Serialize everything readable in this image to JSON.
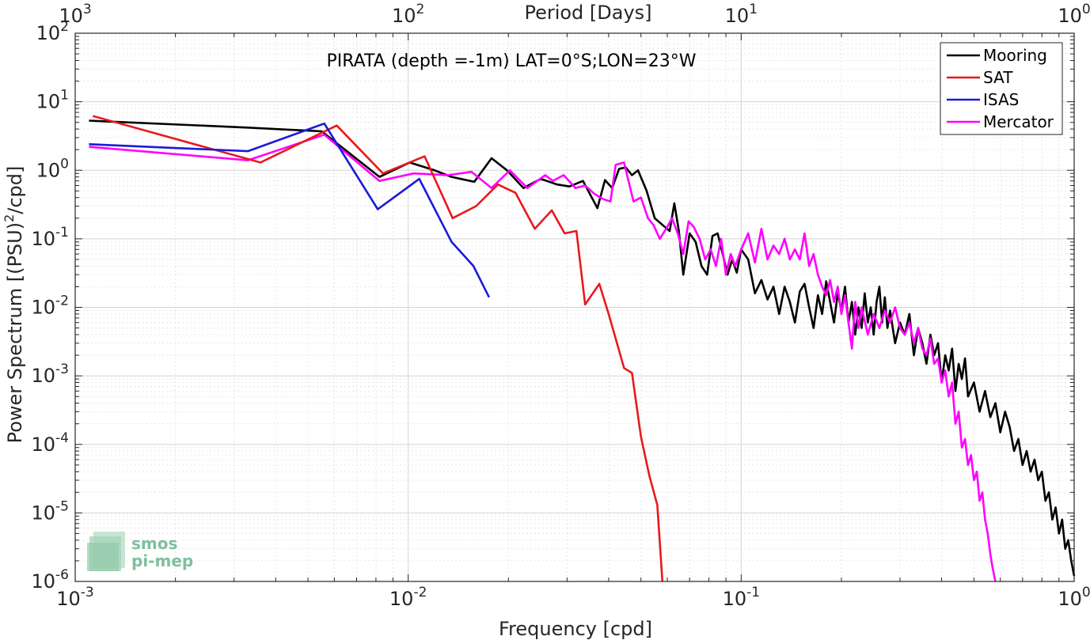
{
  "chart_data": {
    "type": "line",
    "title": "PIRATA (depth =-1m) LAT=0°S;LON=23°W",
    "xlabel": "Frequency [cpd]",
    "ylabel": "Power Spectrum [(PSU)",
    "ylabel_sup": "2",
    "ylabel_tail": "/cpd]",
    "top_xlabel": "Period [Days]",
    "xscale": "log",
    "yscale": "log",
    "xlim": [
      0.001,
      1
    ],
    "ylim": [
      1e-06,
      100
    ],
    "grid": true,
    "legend_position": "top-right",
    "x_ticks": [
      {
        "value": 0.001,
        "base": "10",
        "exp": "-3"
      },
      {
        "value": 0.01,
        "base": "10",
        "exp": "-2"
      },
      {
        "value": 0.1,
        "base": "10",
        "exp": "-1"
      },
      {
        "value": 1,
        "base": "10",
        "exp": "0"
      }
    ],
    "top_ticks": [
      {
        "value": 0.001,
        "base": "10",
        "exp": "3"
      },
      {
        "value": 0.01,
        "base": "10",
        "exp": "2"
      },
      {
        "value": 0.1,
        "base": "10",
        "exp": "1"
      },
      {
        "value": 1,
        "base": "10",
        "exp": "0"
      }
    ],
    "y_ticks": [
      {
        "value": 100,
        "base": "10",
        "exp": "2"
      },
      {
        "value": 10,
        "base": "10",
        "exp": "1"
      },
      {
        "value": 1,
        "base": "10",
        "exp": "0"
      },
      {
        "value": 0.1,
        "base": "10",
        "exp": "-1"
      },
      {
        "value": 0.01,
        "base": "10",
        "exp": "-2"
      },
      {
        "value": 0.001,
        "base": "10",
        "exp": "-3"
      },
      {
        "value": 0.0001,
        "base": "10",
        "exp": "-4"
      },
      {
        "value": 1e-05,
        "base": "10",
        "exp": "-5"
      },
      {
        "value": 1e-06,
        "base": "10",
        "exp": "-6"
      }
    ],
    "series": [
      {
        "name": "Mooring",
        "color": "#000000",
        "points": [
          [
            0.0011,
            5.3
          ],
          [
            0.0033,
            4.2
          ],
          [
            0.0055,
            3.7
          ],
          [
            0.0082,
            0.8
          ],
          [
            0.0101,
            1.3
          ],
          [
            0.012,
            1.0
          ],
          [
            0.0135,
            0.8
          ],
          [
            0.0158,
            0.68
          ],
          [
            0.0178,
            1.5
          ],
          [
            0.0198,
            1.0
          ],
          [
            0.0222,
            0.55
          ],
          [
            0.025,
            0.75
          ],
          [
            0.028,
            0.62
          ],
          [
            0.0305,
            0.58
          ],
          [
            0.0335,
            0.7
          ],
          [
            0.037,
            0.28
          ],
          [
            0.039,
            0.72
          ],
          [
            0.041,
            0.55
          ],
          [
            0.043,
            1.05
          ],
          [
            0.045,
            1.1
          ],
          [
            0.047,
            0.85
          ],
          [
            0.049,
            1.0
          ],
          [
            0.052,
            0.5
          ],
          [
            0.055,
            0.2
          ],
          [
            0.058,
            0.16
          ],
          [
            0.061,
            0.13
          ],
          [
            0.063,
            0.33
          ],
          [
            0.065,
            0.13
          ],
          [
            0.067,
            0.03
          ],
          [
            0.07,
            0.12
          ],
          [
            0.073,
            0.09
          ],
          [
            0.076,
            0.04
          ],
          [
            0.079,
            0.03
          ],
          [
            0.082,
            0.11
          ],
          [
            0.085,
            0.12
          ],
          [
            0.088,
            0.06
          ],
          [
            0.091,
            0.03
          ],
          [
            0.094,
            0.05
          ],
          [
            0.097,
            0.032
          ],
          [
            0.1,
            0.07
          ],
          [
            0.105,
            0.05
          ],
          [
            0.11,
            0.016
          ],
          [
            0.115,
            0.025
          ],
          [
            0.12,
            0.013
          ],
          [
            0.125,
            0.02
          ],
          [
            0.13,
            0.008
          ],
          [
            0.135,
            0.02
          ],
          [
            0.14,
            0.012
          ],
          [
            0.145,
            0.006
          ],
          [
            0.15,
            0.017
          ],
          [
            0.155,
            0.022
          ],
          [
            0.16,
            0.01
          ],
          [
            0.165,
            0.005
          ],
          [
            0.17,
            0.015
          ],
          [
            0.175,
            0.008
          ],
          [
            0.18,
            0.024
          ],
          [
            0.185,
            0.012
          ],
          [
            0.19,
            0.006
          ],
          [
            0.195,
            0.016
          ],
          [
            0.2,
            0.009
          ],
          [
            0.205,
            0.02
          ],
          [
            0.21,
            0.006
          ],
          [
            0.215,
            0.012
          ],
          [
            0.22,
            0.004
          ],
          [
            0.225,
            0.01
          ],
          [
            0.23,
            0.005
          ],
          [
            0.235,
            0.016
          ],
          [
            0.24,
            0.006
          ],
          [
            0.245,
            0.01
          ],
          [
            0.25,
            0.004
          ],
          [
            0.255,
            0.012
          ],
          [
            0.26,
            0.02
          ],
          [
            0.265,
            0.006
          ],
          [
            0.27,
            0.014
          ],
          [
            0.275,
            0.005
          ],
          [
            0.28,
            0.009
          ],
          [
            0.29,
            0.003
          ],
          [
            0.3,
            0.006
          ],
          [
            0.31,
            0.004
          ],
          [
            0.32,
            0.008
          ],
          [
            0.33,
            0.002
          ],
          [
            0.34,
            0.005
          ],
          [
            0.35,
            0.003
          ],
          [
            0.36,
            0.0015
          ],
          [
            0.37,
            0.004
          ],
          [
            0.38,
            0.002
          ],
          [
            0.39,
            0.003
          ],
          [
            0.4,
            0.0008
          ],
          [
            0.41,
            0.002
          ],
          [
            0.42,
            0.0012
          ],
          [
            0.43,
            0.0025
          ],
          [
            0.44,
            0.0006
          ],
          [
            0.45,
            0.0015
          ],
          [
            0.46,
            0.0009
          ],
          [
            0.47,
            0.0018
          ],
          [
            0.48,
            0.0005
          ],
          [
            0.5,
            0.0008
          ],
          [
            0.52,
            0.0003
          ],
          [
            0.54,
            0.0006
          ],
          [
            0.56,
            0.00025
          ],
          [
            0.58,
            0.0004
          ],
          [
            0.6,
            0.00015
          ],
          [
            0.62,
            0.0003
          ],
          [
            0.64,
            0.00018
          ],
          [
            0.66,
            8e-05
          ],
          [
            0.68,
            0.00012
          ],
          [
            0.7,
            5e-05
          ],
          [
            0.72,
            8e-05
          ],
          [
            0.74,
            4e-05
          ],
          [
            0.76,
            6e-05
          ],
          [
            0.78,
            3e-05
          ],
          [
            0.8,
            4e-05
          ],
          [
            0.82,
            1.5e-05
          ],
          [
            0.84,
            2e-05
          ],
          [
            0.86,
            8e-06
          ],
          [
            0.88,
            1.2e-05
          ],
          [
            0.9,
            5e-06
          ],
          [
            0.92,
            8e-06
          ],
          [
            0.94,
            3e-06
          ],
          [
            0.96,
            4e-06
          ],
          [
            0.98,
            2e-06
          ],
          [
            1.0,
            1.2e-06
          ]
        ]
      },
      {
        "name": "SAT",
        "color": "#e8191c",
        "points": [
          [
            0.00113,
            6.2
          ],
          [
            0.0036,
            1.3
          ],
          [
            0.0061,
            4.5
          ],
          [
            0.0084,
            0.9
          ],
          [
            0.0112,
            1.6
          ],
          [
            0.0136,
            0.2
          ],
          [
            0.016,
            0.3
          ],
          [
            0.0186,
            0.62
          ],
          [
            0.021,
            0.47
          ],
          [
            0.024,
            0.14
          ],
          [
            0.027,
            0.26
          ],
          [
            0.0295,
            0.12
          ],
          [
            0.032,
            0.13
          ],
          [
            0.034,
            0.011
          ],
          [
            0.0375,
            0.022
          ],
          [
            0.04,
            0.008
          ],
          [
            0.0445,
            0.0013
          ],
          [
            0.047,
            0.0011
          ],
          [
            0.05,
            0.00013
          ],
          [
            0.053,
            3.5e-05
          ],
          [
            0.056,
            1.3e-05
          ],
          [
            0.058,
            1e-06
          ]
        ]
      },
      {
        "name": "ISAS",
        "color": "#1a1ad9",
        "points": [
          [
            0.0011,
            2.4
          ],
          [
            0.0033,
            1.9
          ],
          [
            0.0056,
            4.8
          ],
          [
            0.0081,
            0.27
          ],
          [
            0.0108,
            0.75
          ],
          [
            0.0135,
            0.09
          ],
          [
            0.0157,
            0.04
          ],
          [
            0.0175,
            0.014
          ]
        ]
      },
      {
        "name": "Mercator",
        "color": "#ff00ff",
        "points": [
          [
            0.0011,
            2.2
          ],
          [
            0.0033,
            1.4
          ],
          [
            0.0056,
            3.3
          ],
          [
            0.0082,
            0.7
          ],
          [
            0.0104,
            0.9
          ],
          [
            0.0132,
            0.85
          ],
          [
            0.0155,
            0.95
          ],
          [
            0.0178,
            0.55
          ],
          [
            0.0202,
            1.0
          ],
          [
            0.0228,
            0.55
          ],
          [
            0.0258,
            0.85
          ],
          [
            0.0272,
            0.7
          ],
          [
            0.0293,
            0.85
          ],
          [
            0.0318,
            0.55
          ],
          [
            0.034,
            0.6
          ],
          [
            0.0363,
            0.45
          ],
          [
            0.0385,
            0.38
          ],
          [
            0.0405,
            0.35
          ],
          [
            0.042,
            1.2
          ],
          [
            0.0445,
            1.3
          ],
          [
            0.0475,
            0.35
          ],
          [
            0.05,
            0.4
          ],
          [
            0.0525,
            0.2
          ],
          [
            0.0545,
            0.16
          ],
          [
            0.057,
            0.1
          ],
          [
            0.0595,
            0.14
          ],
          [
            0.062,
            0.2
          ],
          [
            0.0645,
            0.12
          ],
          [
            0.067,
            0.06
          ],
          [
            0.0695,
            0.18
          ],
          [
            0.072,
            0.15
          ],
          [
            0.075,
            0.1
          ],
          [
            0.078,
            0.05
          ],
          [
            0.081,
            0.07
          ],
          [
            0.084,
            0.04
          ],
          [
            0.087,
            0.1
          ],
          [
            0.09,
            0.03
          ],
          [
            0.093,
            0.06
          ],
          [
            0.096,
            0.04
          ],
          [
            0.1,
            0.07
          ],
          [
            0.105,
            0.12
          ],
          [
            0.11,
            0.045
          ],
          [
            0.115,
            0.14
          ],
          [
            0.12,
            0.05
          ],
          [
            0.125,
            0.08
          ],
          [
            0.13,
            0.06
          ],
          [
            0.135,
            0.1
          ],
          [
            0.14,
            0.05
          ],
          [
            0.145,
            0.07
          ],
          [
            0.15,
            0.05
          ],
          [
            0.155,
            0.12
          ],
          [
            0.16,
            0.04
          ],
          [
            0.165,
            0.06
          ],
          [
            0.17,
            0.03
          ],
          [
            0.175,
            0.02
          ],
          [
            0.18,
            0.015
          ],
          [
            0.185,
            0.025
          ],
          [
            0.19,
            0.012
          ],
          [
            0.195,
            0.02
          ],
          [
            0.2,
            0.008
          ],
          [
            0.205,
            0.015
          ],
          [
            0.21,
            0.006
          ],
          [
            0.215,
            0.0025
          ],
          [
            0.22,
            0.012
          ],
          [
            0.225,
            0.005
          ],
          [
            0.23,
            0.01
          ],
          [
            0.24,
            0.004
          ],
          [
            0.25,
            0.008
          ],
          [
            0.26,
            0.005
          ],
          [
            0.27,
            0.009
          ],
          [
            0.28,
            0.006
          ],
          [
            0.29,
            0.01
          ],
          [
            0.3,
            0.005
          ],
          [
            0.31,
            0.004
          ],
          [
            0.32,
            0.006
          ],
          [
            0.33,
            0.003
          ],
          [
            0.34,
            0.005
          ],
          [
            0.35,
            0.0025
          ],
          [
            0.36,
            0.002
          ],
          [
            0.37,
            0.0035
          ],
          [
            0.38,
            0.0015
          ],
          [
            0.39,
            0.0018
          ],
          [
            0.4,
            0.0008
          ],
          [
            0.41,
            0.0012
          ],
          [
            0.42,
            0.0005
          ],
          [
            0.43,
            0.0008
          ],
          [
            0.44,
            0.0002
          ],
          [
            0.45,
            0.0003
          ],
          [
            0.46,
            9e-05
          ],
          [
            0.47,
            0.00012
          ],
          [
            0.48,
            5e-05
          ],
          [
            0.49,
            7e-05
          ],
          [
            0.5,
            3e-05
          ],
          [
            0.51,
            4e-05
          ],
          [
            0.52,
            1.5e-05
          ],
          [
            0.53,
            2e-05
          ],
          [
            0.54,
            8e-06
          ],
          [
            0.55,
            5e-06
          ],
          [
            0.56,
            2.5e-06
          ],
          [
            0.57,
            1.5e-06
          ],
          [
            0.58,
            1e-06
          ]
        ]
      }
    ]
  },
  "logo": {
    "line1": "smos",
    "line2": "pi-mep"
  }
}
